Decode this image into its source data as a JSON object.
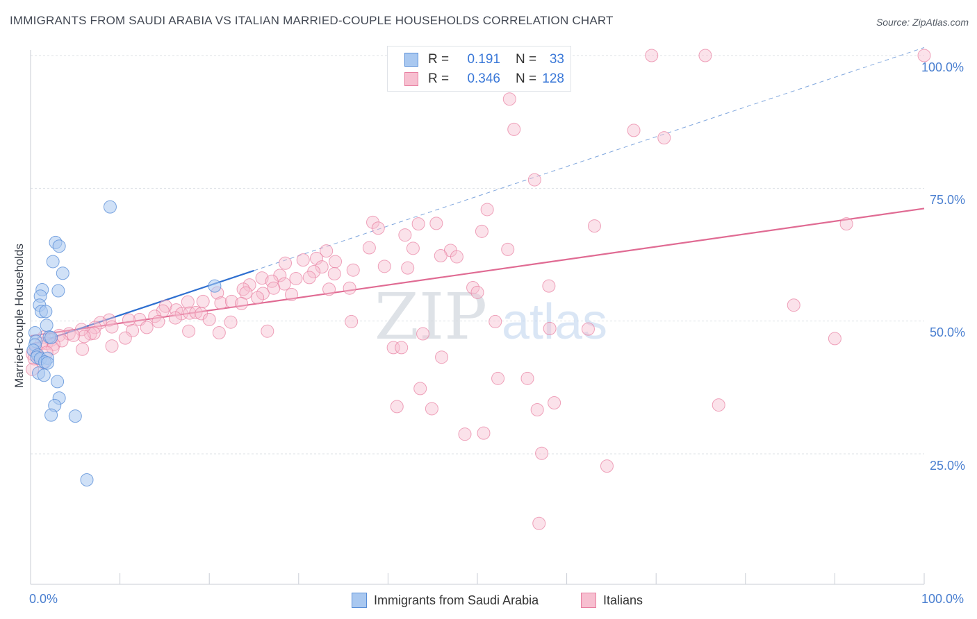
{
  "title": "IMMIGRANTS FROM SAUDI ARABIA VS ITALIAN MARRIED-COUPLE HOUSEHOLDS CORRELATION CHART",
  "source": "Source: ZipAtlas.com",
  "watermark": {
    "zip": "ZIP",
    "atlas": "atlas"
  },
  "legend_top": {
    "rows": [
      {
        "r_label": "R =",
        "r_value": "0.191",
        "n_label": "N =",
        "n_value": "33",
        "color": "#a9c8f0",
        "border": "#5a8fd8"
      },
      {
        "r_label": "R =",
        "r_value": "0.346",
        "n_label": "N =",
        "n_value": "128",
        "color": "#f7bfd0",
        "border": "#e87ea0"
      }
    ]
  },
  "legend_bottom": [
    {
      "label": "Immigrants from Saudi Arabia",
      "color": "#a9c8f0",
      "border": "#5a8fd8"
    },
    {
      "label": "Italians",
      "color": "#f7bfd0",
      "border": "#e87ea0"
    }
  ],
  "chart_data": {
    "type": "scatter",
    "title": "IMMIGRANTS FROM SAUDI ARABIA VS ITALIAN MARRIED-COUPLE HOUSEHOLDS CORRELATION CHART",
    "xlabel": "",
    "ylabel": "Married-couple Households",
    "xlim": [
      0,
      100
    ],
    "ylim": [
      3,
      101
    ],
    "x_tick_labels": [
      "0.0%",
      "100.0%"
    ],
    "y_tick_labels": [
      "25.0%",
      "50.0%",
      "75.0%",
      "100.0%"
    ],
    "y_ticks": [
      25,
      50,
      75,
      100
    ],
    "series": [
      {
        "name": "Immigrants from Saudi Arabia",
        "color": "#a9c8f0",
        "stroke": "#5a8fd8",
        "trend_color": "#2e6fd0",
        "trend": {
          "x0": 0,
          "y0": 45.5,
          "x1": 25.0,
          "y1": 59.5
        },
        "trend_dashed": {
          "x0": 25.0,
          "y0": 59.5,
          "x1": 100,
          "y1": 101.5
        },
        "points": [
          [
            8.9,
            71.5
          ],
          [
            2.8,
            64.8
          ],
          [
            3.2,
            64.1
          ],
          [
            2.5,
            61.2
          ],
          [
            3.6,
            59.0
          ],
          [
            1.3,
            55.9
          ],
          [
            3.1,
            55.7
          ],
          [
            1.1,
            54.7
          ],
          [
            1.0,
            53.0
          ],
          [
            1.2,
            51.8
          ],
          [
            1.7,
            51.8
          ],
          [
            1.8,
            49.2
          ],
          [
            0.5,
            47.8
          ],
          [
            0.6,
            46.2
          ],
          [
            2.1,
            47.0
          ],
          [
            2.3,
            46.9
          ],
          [
            0.5,
            45.5
          ],
          [
            0.3,
            44.5
          ],
          [
            0.8,
            43.6
          ],
          [
            0.7,
            43.2
          ],
          [
            1.1,
            42.9
          ],
          [
            1.9,
            43.0
          ],
          [
            1.6,
            42.3
          ],
          [
            1.9,
            42.1
          ],
          [
            0.9,
            40.2
          ],
          [
            1.5,
            39.8
          ],
          [
            3.0,
            38.6
          ],
          [
            3.2,
            35.5
          ],
          [
            2.7,
            34.1
          ],
          [
            2.3,
            32.3
          ],
          [
            5.0,
            32.1
          ],
          [
            6.3,
            20.1
          ],
          [
            20.6,
            56.6
          ]
        ]
      },
      {
        "name": "Italians",
        "color": "#f7bfd0",
        "stroke": "#e87ea0",
        "trend_color": "#e06b93",
        "trend": {
          "x0": 0,
          "y0": 47.2,
          "x1": 100,
          "y1": 71.2
        },
        "points": [
          [
            69.5,
            100.0
          ],
          [
            75.5,
            100.0
          ],
          [
            100.0,
            100.0
          ],
          [
            53.6,
            91.8
          ],
          [
            54.1,
            86.1
          ],
          [
            67.5,
            85.9
          ],
          [
            70.9,
            84.5
          ],
          [
            56.4,
            76.6
          ],
          [
            51.1,
            71.0
          ],
          [
            38.3,
            68.6
          ],
          [
            38.9,
            67.5
          ],
          [
            43.4,
            68.3
          ],
          [
            45.4,
            68.4
          ],
          [
            63.1,
            67.9
          ],
          [
            50.5,
            66.9
          ],
          [
            41.9,
            66.2
          ],
          [
            91.3,
            68.3
          ],
          [
            37.9,
            63.8
          ],
          [
            42.8,
            63.7
          ],
          [
            47.0,
            63.3
          ],
          [
            53.4,
            63.5
          ],
          [
            33.1,
            63.2
          ],
          [
            47.7,
            62.1
          ],
          [
            45.9,
            62.3
          ],
          [
            30.5,
            61.5
          ],
          [
            32.0,
            61.8
          ],
          [
            34.1,
            61.2
          ],
          [
            28.5,
            60.9
          ],
          [
            32.6,
            60.2
          ],
          [
            39.6,
            60.3
          ],
          [
            42.2,
            60.0
          ],
          [
            36.1,
            59.6
          ],
          [
            31.7,
            59.3
          ],
          [
            34.0,
            58.9
          ],
          [
            27.9,
            58.6
          ],
          [
            25.9,
            58.1
          ],
          [
            29.7,
            58.0
          ],
          [
            31.2,
            58.2
          ],
          [
            27.0,
            57.5
          ],
          [
            24.5,
            56.8
          ],
          [
            28.4,
            57.0
          ],
          [
            27.2,
            56.2
          ],
          [
            23.8,
            56.0
          ],
          [
            35.7,
            56.2
          ],
          [
            49.5,
            56.3
          ],
          [
            50.0,
            55.4
          ],
          [
            58.0,
            56.6
          ],
          [
            20.9,
            55.3
          ],
          [
            24.1,
            55.3
          ],
          [
            26.0,
            55.2
          ],
          [
            29.2,
            55.0
          ],
          [
            25.4,
            54.4
          ],
          [
            19.3,
            53.7
          ],
          [
            21.3,
            53.4
          ],
          [
            22.5,
            53.7
          ],
          [
            23.6,
            53.3
          ],
          [
            17.6,
            53.6
          ],
          [
            15.1,
            52.8
          ],
          [
            16.3,
            52.1
          ],
          [
            14.8,
            51.9
          ],
          [
            16.9,
            51.4
          ],
          [
            17.8,
            51.5
          ],
          [
            18.5,
            51.6
          ],
          [
            19.1,
            51.4
          ],
          [
            13.9,
            50.9
          ],
          [
            12.2,
            50.3
          ],
          [
            16.2,
            50.6
          ],
          [
            11.0,
            50.2
          ],
          [
            20.0,
            50.3
          ],
          [
            14.3,
            49.9
          ],
          [
            8.8,
            50.2
          ],
          [
            7.8,
            49.7
          ],
          [
            22.4,
            49.8
          ],
          [
            35.9,
            49.9
          ],
          [
            52.0,
            49.9
          ],
          [
            9.1,
            48.9
          ],
          [
            13.0,
            48.8
          ],
          [
            11.4,
            48.2
          ],
          [
            7.2,
            48.8
          ],
          [
            6.7,
            47.6
          ],
          [
            5.7,
            48.4
          ],
          [
            7.1,
            47.7
          ],
          [
            4.3,
            47.6
          ],
          [
            6.0,
            47.1
          ],
          [
            4.8,
            47.3
          ],
          [
            3.2,
            47.3
          ],
          [
            1.5,
            47.0
          ],
          [
            2.3,
            46.4
          ],
          [
            1.8,
            45.8
          ],
          [
            3.5,
            46.3
          ],
          [
            1.2,
            45.8
          ],
          [
            10.6,
            46.8
          ],
          [
            2.6,
            45.6
          ],
          [
            2.5,
            44.9
          ],
          [
            9.1,
            45.3
          ],
          [
            5.8,
            44.7
          ],
          [
            0.6,
            44.8
          ],
          [
            1.8,
            44.1
          ],
          [
            0.2,
            43.8
          ],
          [
            40.6,
            45.0
          ],
          [
            0.9,
            43.2
          ],
          [
            0.4,
            42.9
          ],
          [
            1.4,
            42.2
          ],
          [
            0.2,
            40.9
          ],
          [
            41.5,
            45.0
          ],
          [
            58.1,
            48.6
          ],
          [
            46.0,
            43.2
          ],
          [
            62.4,
            48.5
          ],
          [
            85.4,
            53.0
          ],
          [
            90.0,
            46.7
          ],
          [
            43.9,
            47.6
          ],
          [
            26.5,
            48.1
          ],
          [
            21.1,
            47.8
          ],
          [
            43.6,
            37.3
          ],
          [
            52.3,
            39.2
          ],
          [
            55.6,
            39.2
          ],
          [
            41.0,
            33.9
          ],
          [
            44.9,
            33.5
          ],
          [
            56.7,
            33.3
          ],
          [
            58.6,
            34.6
          ],
          [
            77.0,
            34.2
          ],
          [
            48.6,
            28.7
          ],
          [
            50.7,
            28.9
          ],
          [
            57.2,
            25.1
          ],
          [
            64.5,
            22.7
          ],
          [
            56.9,
            11.9
          ],
          [
            17.7,
            48.1
          ],
          [
            33.4,
            56.0
          ]
        ]
      }
    ]
  }
}
